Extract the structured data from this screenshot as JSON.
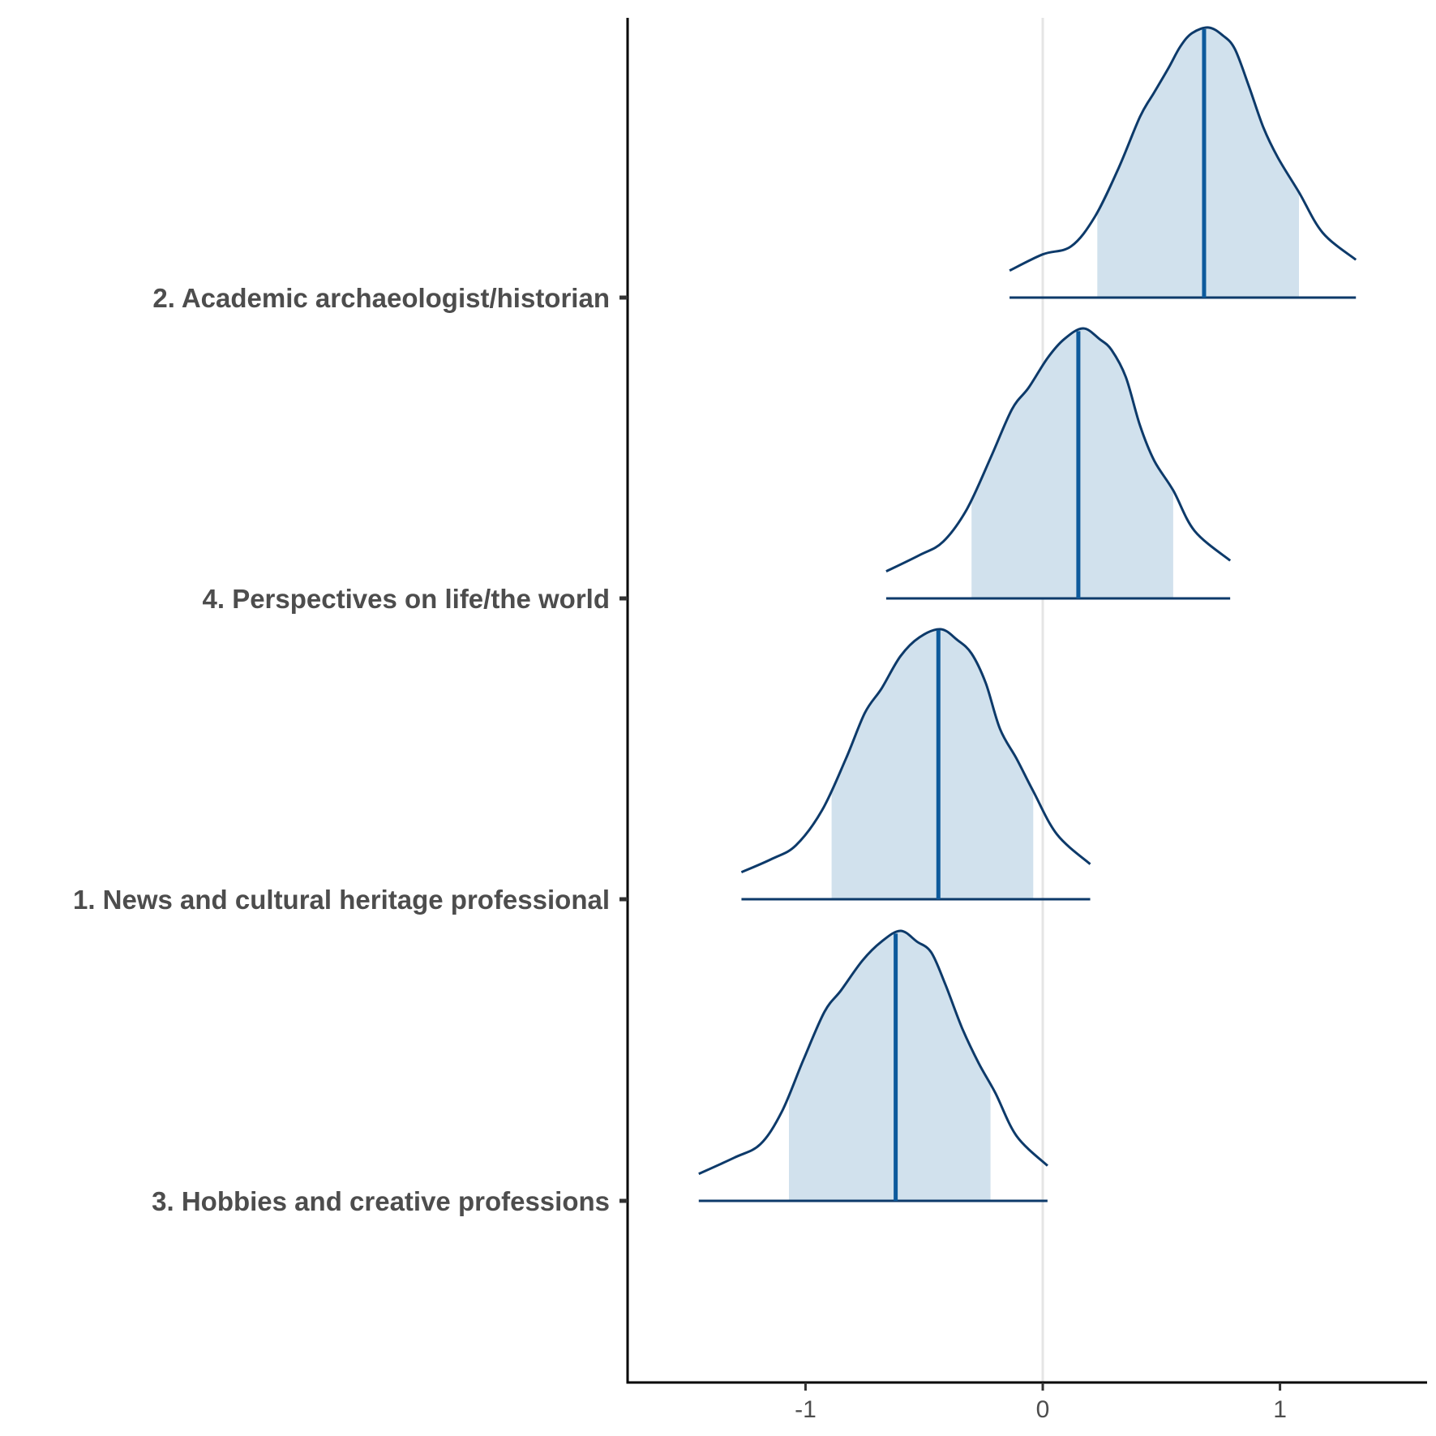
{
  "chart_data": {
    "type": "ridgeline",
    "title": "",
    "xlabel": "",
    "ylabel": "",
    "xlim": [
      -1.75,
      1.62
    ],
    "x_ticks": [
      {
        "value": -1,
        "label": "-1"
      },
      {
        "value": 0,
        "label": "0"
      },
      {
        "value": 1,
        "label": "1"
      }
    ],
    "reference_line": 0,
    "grid": false,
    "colors": {
      "fill": "#d1e1ed",
      "outline": "#0d3a6a",
      "median": "#0d5a9c",
      "reference": "#e5e5e5",
      "axis": "#000000",
      "text": "#4d4d4d"
    },
    "series": [
      {
        "label": "2. Academic archaeologist/historian",
        "median": 0.68,
        "interval_inner": [
          0.23,
          1.08
        ],
        "interval_outer": [
          -0.14,
          1.32
        ],
        "density": [
          [
            -0.14,
            0.1
          ],
          [
            0.0,
            0.16
          ],
          [
            0.12,
            0.19
          ],
          [
            0.22,
            0.3
          ],
          [
            0.32,
            0.48
          ],
          [
            0.41,
            0.67
          ],
          [
            0.47,
            0.76
          ],
          [
            0.53,
            0.85
          ],
          [
            0.58,
            0.93
          ],
          [
            0.63,
            0.98
          ],
          [
            0.7,
            1.0
          ],
          [
            0.76,
            0.97
          ],
          [
            0.81,
            0.92
          ],
          [
            0.87,
            0.78
          ],
          [
            0.93,
            0.63
          ],
          [
            0.99,
            0.52
          ],
          [
            1.08,
            0.39
          ],
          [
            1.18,
            0.24
          ],
          [
            1.32,
            0.14
          ]
        ]
      },
      {
        "label": "4. Perspectives on life/the world",
        "median": 0.15,
        "interval_inner": [
          -0.3,
          0.55
        ],
        "interval_outer": [
          -0.66,
          0.79
        ],
        "density": [
          [
            -0.66,
            0.1
          ],
          [
            -0.52,
            0.16
          ],
          [
            -0.42,
            0.21
          ],
          [
            -0.32,
            0.33
          ],
          [
            -0.22,
            0.52
          ],
          [
            -0.13,
            0.7
          ],
          [
            -0.06,
            0.78
          ],
          [
            0.02,
            0.89
          ],
          [
            0.09,
            0.96
          ],
          [
            0.17,
            1.0
          ],
          [
            0.24,
            0.96
          ],
          [
            0.29,
            0.92
          ],
          [
            0.35,
            0.82
          ],
          [
            0.41,
            0.64
          ],
          [
            0.47,
            0.51
          ],
          [
            0.55,
            0.4
          ],
          [
            0.64,
            0.25
          ],
          [
            0.79,
            0.14
          ]
        ]
      },
      {
        "label": "1. News and cultural heritage professional",
        "median": -0.44,
        "interval_inner": [
          -0.89,
          -0.04
        ],
        "interval_outer": [
          -1.27,
          0.2
        ],
        "density": [
          [
            -1.27,
            0.1
          ],
          [
            -1.14,
            0.15
          ],
          [
            -1.04,
            0.2
          ],
          [
            -0.93,
            0.33
          ],
          [
            -0.83,
            0.52
          ],
          [
            -0.75,
            0.69
          ],
          [
            -0.68,
            0.78
          ],
          [
            -0.6,
            0.9
          ],
          [
            -0.52,
            0.97
          ],
          [
            -0.43,
            1.0
          ],
          [
            -0.36,
            0.96
          ],
          [
            -0.3,
            0.91
          ],
          [
            -0.24,
            0.8
          ],
          [
            -0.18,
            0.63
          ],
          [
            -0.11,
            0.52
          ],
          [
            -0.04,
            0.4
          ],
          [
            0.06,
            0.24
          ],
          [
            0.2,
            0.13
          ]
        ]
      },
      {
        "label": "3. Hobbies and creative professions",
        "median": -0.62,
        "interval_inner": [
          -1.07,
          -0.22
        ],
        "interval_outer": [
          -1.45,
          0.02
        ],
        "density": [
          [
            -1.45,
            0.1
          ],
          [
            -1.3,
            0.16
          ],
          [
            -1.19,
            0.21
          ],
          [
            -1.1,
            0.33
          ],
          [
            -1.01,
            0.52
          ],
          [
            -0.92,
            0.7
          ],
          [
            -0.85,
            0.78
          ],
          [
            -0.76,
            0.89
          ],
          [
            -0.68,
            0.96
          ],
          [
            -0.6,
            1.0
          ],
          [
            -0.53,
            0.96
          ],
          [
            -0.47,
            0.92
          ],
          [
            -0.41,
            0.8
          ],
          [
            -0.34,
            0.64
          ],
          [
            -0.27,
            0.51
          ],
          [
            -0.2,
            0.4
          ],
          [
            -0.11,
            0.24
          ],
          [
            0.02,
            0.13
          ]
        ]
      }
    ]
  }
}
